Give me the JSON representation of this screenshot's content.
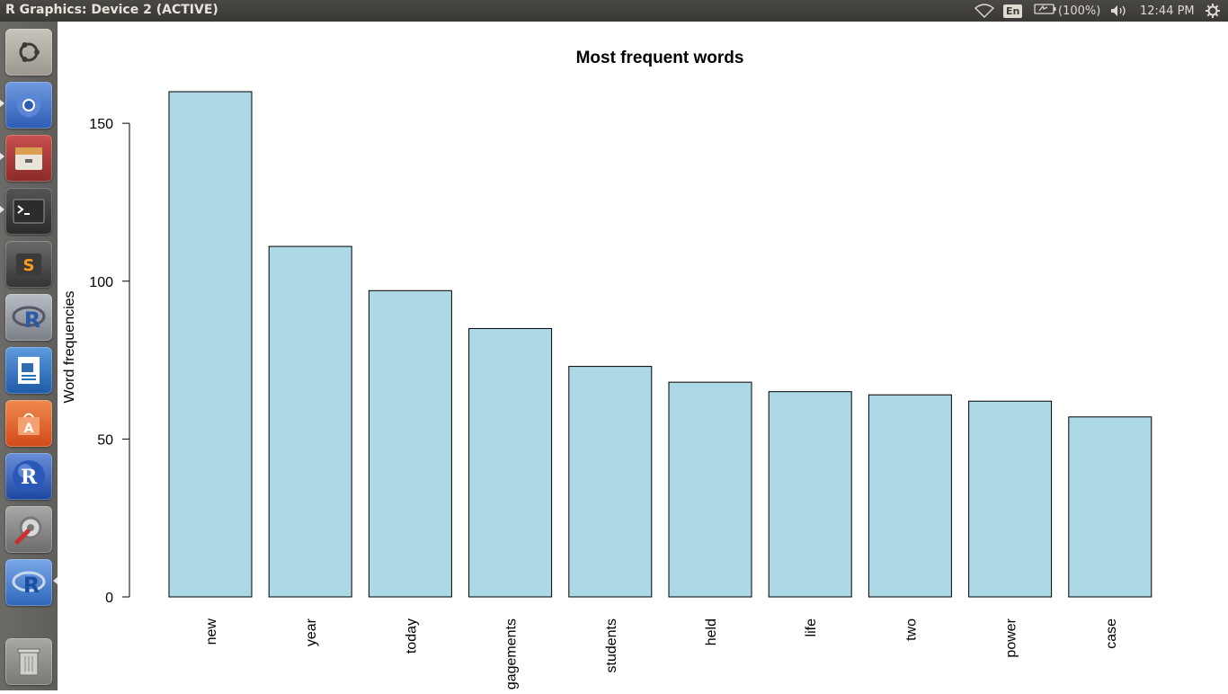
{
  "window": {
    "title": "R Graphics: Device 2 (ACTIVE)"
  },
  "tray": {
    "lang": "En",
    "battery": "(100%)",
    "clock": "12:44 PM"
  },
  "launcher": {
    "items": [
      {
        "name": "ubuntu-dash-icon",
        "color": "#a8a49c"
      },
      {
        "name": "chromium-icon",
        "color": "#3f6fc4"
      },
      {
        "name": "files-icon",
        "color": "#9e3a3a"
      },
      {
        "name": "terminal-icon",
        "color": "#3b3b3b"
      },
      {
        "name": "sublime-text-icon",
        "color": "#4a4a4a"
      },
      {
        "name": "r-logo-icon",
        "color": "#8a8f98"
      },
      {
        "name": "libreoffice-impress-icon",
        "color": "#2f6db0"
      },
      {
        "name": "software-center-icon",
        "color": "#e0622a"
      },
      {
        "name": "r-globe-icon",
        "color": "#2b58b8"
      },
      {
        "name": "system-settings-icon",
        "color": "#8a8a8a"
      },
      {
        "name": "rstudio-icon",
        "color": "#3a78c8"
      },
      {
        "name": "trash-icon",
        "color": "#8a8985"
      }
    ]
  },
  "chart_data": {
    "type": "bar",
    "title": "Most frequent words",
    "xlabel": "",
    "ylabel": "Word frequencies",
    "categories": [
      "new",
      "year",
      "today",
      "engagements",
      "students",
      "held",
      "life",
      "two",
      "power",
      "case"
    ],
    "values": [
      160,
      111,
      97,
      85,
      73,
      68,
      65,
      64,
      62,
      57
    ],
    "ylim": [
      0,
      160
    ],
    "yticks": [
      0,
      50,
      100,
      150
    ],
    "bar_color": "#add8e6",
    "grid": false,
    "legend": "none"
  }
}
